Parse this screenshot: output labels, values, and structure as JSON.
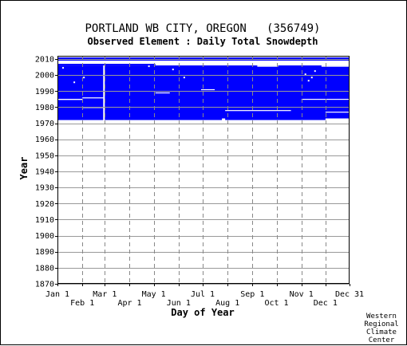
{
  "chart_data": {
    "type": "bar",
    "title": "PORTLAND WB CITY, OREGON   (356749)",
    "subtitle": "Observed Element : Daily Total Snowdepth",
    "xlabel": "Day of Year",
    "ylabel": "Year",
    "credit": [
      "Western",
      "Regional",
      "Climate",
      "Center"
    ],
    "ylim": [
      1870,
      2012
    ],
    "xlim": [
      1,
      365
    ],
    "yticks": [
      1870,
      1880,
      1890,
      1900,
      1910,
      1920,
      1930,
      1940,
      1950,
      1960,
      1970,
      1980,
      1990,
      2000,
      2010
    ],
    "xticks_top": [
      {
        "label": "Jan 1",
        "day": 1
      },
      {
        "label": "Mar 1",
        "day": 60
      },
      {
        "label": "May 1",
        "day": 121
      },
      {
        "label": "Jul 1",
        "day": 182
      },
      {
        "label": "Sep 1",
        "day": 244
      },
      {
        "label": "Nov 1",
        "day": 305
      },
      {
        "label": "Dec 31",
        "day": 365
      }
    ],
    "xticks_bottom": [
      {
        "label": "Feb 1",
        "day": 32
      },
      {
        "label": "Apr 1",
        "day": 91
      },
      {
        "label": "Jun 1",
        "day": 152
      },
      {
        "label": "Aug 1",
        "day": 213
      },
      {
        "label": "Oct 1",
        "day": 274
      },
      {
        "label": "Dec 1",
        "day": 335
      }
    ],
    "grid": true,
    "data_color": "#0000ff",
    "coverage": [
      {
        "day_start": 1,
        "day_end": 365,
        "year_start": 1972,
        "year_end": 2006
      },
      {
        "day_start": 1,
        "day_end": 123,
        "year_start": 2006,
        "year_end": 2007
      },
      {
        "day_start": 1,
        "day_end": 365,
        "year_start": 2009,
        "year_end": 2011
      }
    ],
    "gaps": [
      {
        "day_start": 1,
        "day_end": 32,
        "year_start": 1984.5,
        "year_end": 1985.2
      },
      {
        "day_start": 32,
        "day_end": 58,
        "year_start": 1985.5,
        "year_end": 1986.1
      },
      {
        "day_start": 32,
        "day_end": 58,
        "year_start": 1979.5,
        "year_end": 1980.1
      },
      {
        "day_start": 58,
        "day_end": 60,
        "year_start": 1971,
        "year_end": 2006
      },
      {
        "day_start": 123,
        "day_end": 141,
        "year_start": 1988.6,
        "year_end": 1989.2
      },
      {
        "day_start": 180,
        "day_end": 197,
        "year_start": 1990.6,
        "year_end": 1991.2
      },
      {
        "day_start": 206,
        "day_end": 210,
        "year_start": 1971,
        "year_end": 1973
      },
      {
        "day_start": 210,
        "day_end": 292,
        "year_start": 1977.6,
        "year_end": 1978.2
      },
      {
        "day_start": 216,
        "day_end": 365,
        "year_start": 2007,
        "year_end": 2009
      },
      {
        "day_start": 305,
        "day_end": 365,
        "year_start": 1984.6,
        "year_end": 1985.2
      },
      {
        "day_start": 335,
        "day_end": 365,
        "year_start": 1976.6,
        "year_end": 1977.2
      },
      {
        "day_start": 335,
        "day_end": 365,
        "year_start": 1971,
        "year_end": 1973
      },
      {
        "day_start": 250,
        "day_end": 276,
        "year_start": 2005.2,
        "year_end": 2006
      },
      {
        "day_start": 330,
        "day_end": 365,
        "year_start": 2005.2,
        "year_end": 2006
      }
    ],
    "specks": [
      {
        "day": 8,
        "year": 2004.5
      },
      {
        "day": 22,
        "year": 1995.5
      },
      {
        "day": 34,
        "year": 1998.5
      },
      {
        "day": 115,
        "year": 2005.5
      },
      {
        "day": 145,
        "year": 2003.5
      },
      {
        "day": 159,
        "year": 1998.5
      },
      {
        "day": 310,
        "year": 2000.5
      },
      {
        "day": 314,
        "year": 1996.5
      },
      {
        "day": 318,
        "year": 1998.5
      },
      {
        "day": 322,
        "year": 2002.5
      }
    ]
  }
}
